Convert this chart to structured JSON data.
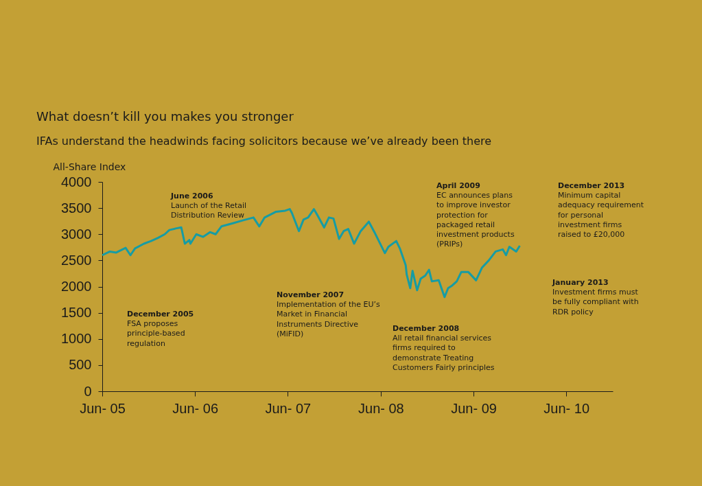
{
  "chart_data": {
    "type": "line",
    "title": "What doesn’t kill you makes you stronger",
    "subtitle": "IFAs understand the headwinds facing solicitors because we’ve already been there",
    "ylabel": "All-Share Index",
    "x": [
      "2005-06-01",
      "2005-07-01",
      "2005-07-26",
      "2005-09-01",
      "2005-09-20",
      "2005-10-08",
      "2005-11-12",
      "2005-12-10",
      "2006-01-06",
      "2006-02-02",
      "2006-02-20",
      "2006-03-17",
      "2006-04-08",
      "2006-04-22",
      "2006-05-10",
      "2006-05-14",
      "2006-06-06",
      "2006-07-03",
      "2006-07-30",
      "2006-08-21",
      "2006-09-13",
      "2006-10-28",
      "2006-12-03",
      "2007-01-17",
      "2007-02-09",
      "2007-03-02",
      "2007-04-16",
      "2007-05-22",
      "2007-06-09",
      "2007-06-17",
      "2007-07-15",
      "2007-08-02",
      "2007-08-20",
      "2007-09-12",
      "2007-09-25",
      "2007-10-22",
      "2007-11-10",
      "2007-11-28",
      "2007-12-20",
      "2008-01-07",
      "2008-01-25",
      "2008-02-17",
      "2008-03-14",
      "2008-04-15",
      "2008-05-07",
      "2008-06-17",
      "2008-07-01",
      "2008-08-01",
      "2008-08-15",
      "2008-09-07",
      "2008-09-11",
      "2008-09-25",
      "2008-10-04",
      "2008-10-22",
      "2008-11-05",
      "2008-11-23",
      "2008-12-08",
      "2008-12-19",
      "2009-01-15",
      "2009-02-07",
      "2009-02-21",
      "2009-03-09",
      "2009-03-27",
      "2009-04-14",
      "2009-05-11",
      "2009-06-11",
      "2009-07-04",
      "2009-07-31",
      "2009-08-27",
      "2009-09-24",
      "2009-10-07",
      "2009-10-20",
      "2009-11-16",
      "2009-11-30"
    ],
    "series": [
      {
        "color": "#169ca4",
        "values": [
          2600,
          2670,
          2650,
          2740,
          2600,
          2730,
          2820,
          2870,
          2930,
          3000,
          3080,
          3110,
          3130,
          2820,
          2890,
          2820,
          3000,
          2950,
          3040,
          3000,
          3150,
          3210,
          3260,
          3320,
          3150,
          3320,
          3430,
          3450,
          3480,
          3410,
          3060,
          3280,
          3320,
          3480,
          3370,
          3130,
          3320,
          3300,
          2910,
          3060,
          3100,
          2820,
          3060,
          3240,
          3040,
          2640,
          2760,
          2870,
          2730,
          2410,
          2230,
          1970,
          2300,
          1930,
          2150,
          2210,
          2320,
          2100,
          2120,
          1800,
          1970,
          2020,
          2100,
          2280,
          2280,
          2120,
          2360,
          2500,
          2670,
          2710,
          2600,
          2760,
          2670,
          2780
        ]
      }
    ],
    "xlim": [
      "2005-06-01",
      "2010-12-01"
    ],
    "xticks": [
      {
        "value": "2005-06-01",
        "label": "Jun- 05"
      },
      {
        "value": "2006-06-01",
        "label": "Jun- 06"
      },
      {
        "value": "2007-06-01",
        "label": "Jun- 07"
      },
      {
        "value": "2008-06-01",
        "label": "Jun- 08"
      },
      {
        "value": "2009-06-01",
        "label": "Jun- 09"
      },
      {
        "value": "2010-06-01",
        "label": "Jun- 10"
      }
    ],
    "ylim": [
      0,
      4000
    ],
    "yticks": [
      0,
      500,
      1000,
      1500,
      2000,
      2500,
      3000,
      3500,
      4000
    ],
    "line_style": "solid",
    "annotations": [
      "December 2005\nFSA proposes\nprinciple-based\nregulation",
      "June 2006\nLaunch of the Retail\nDistribution Review",
      "November 2007\nImplementation of the EU’s\nMarket in Financial\nInstruments Directive\n(MiFID)",
      "December 2008\nAll retail financial services\nfirms required to\ndemonstrate Treating\nCustomers Fairly principles",
      "April 2009\nEC announces plans\nto improve investor\nprotection for\npackaged retail\ninvestment products\n(PRIPs)",
      "January 2013\nInvestment firms must\nbe fully compliant with\nRDR policy",
      "December 2013\nMinimum capital\nadequacy requirement\nfor personal\ninvestment firms\nraised to £20,000"
    ]
  }
}
